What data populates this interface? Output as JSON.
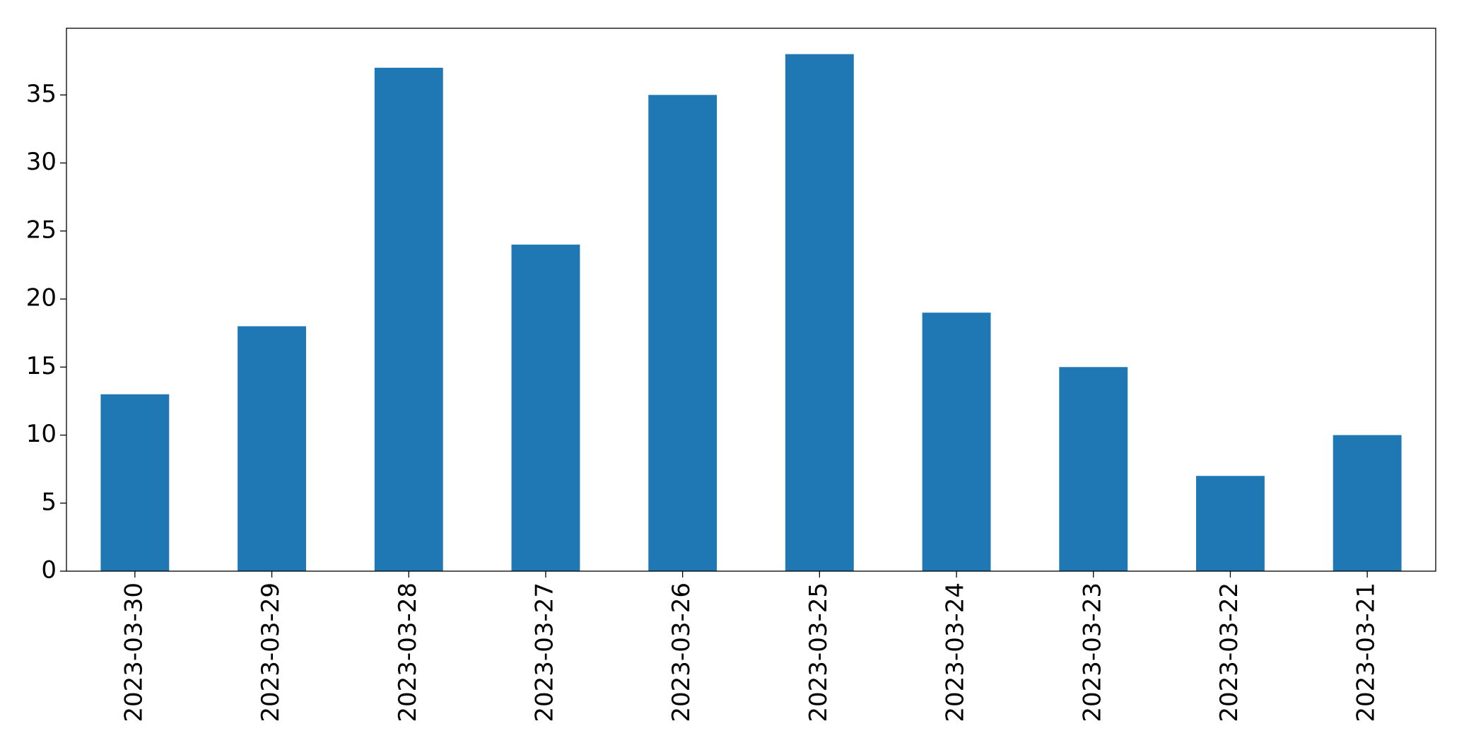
{
  "chart_data": {
    "type": "bar",
    "categories": [
      "2023-03-30",
      "2023-03-29",
      "2023-03-28",
      "2023-03-27",
      "2023-03-26",
      "2023-03-25",
      "2023-03-24",
      "2023-03-23",
      "2023-03-22",
      "2023-03-21"
    ],
    "values": [
      13,
      18,
      37,
      24,
      35,
      38,
      19,
      15,
      7,
      10
    ],
    "color": "#1f77b4",
    "ylim": [
      0,
      39.9
    ],
    "yticks": [
      0,
      5,
      10,
      15,
      20,
      25,
      30,
      35
    ],
    "grid": false
  }
}
